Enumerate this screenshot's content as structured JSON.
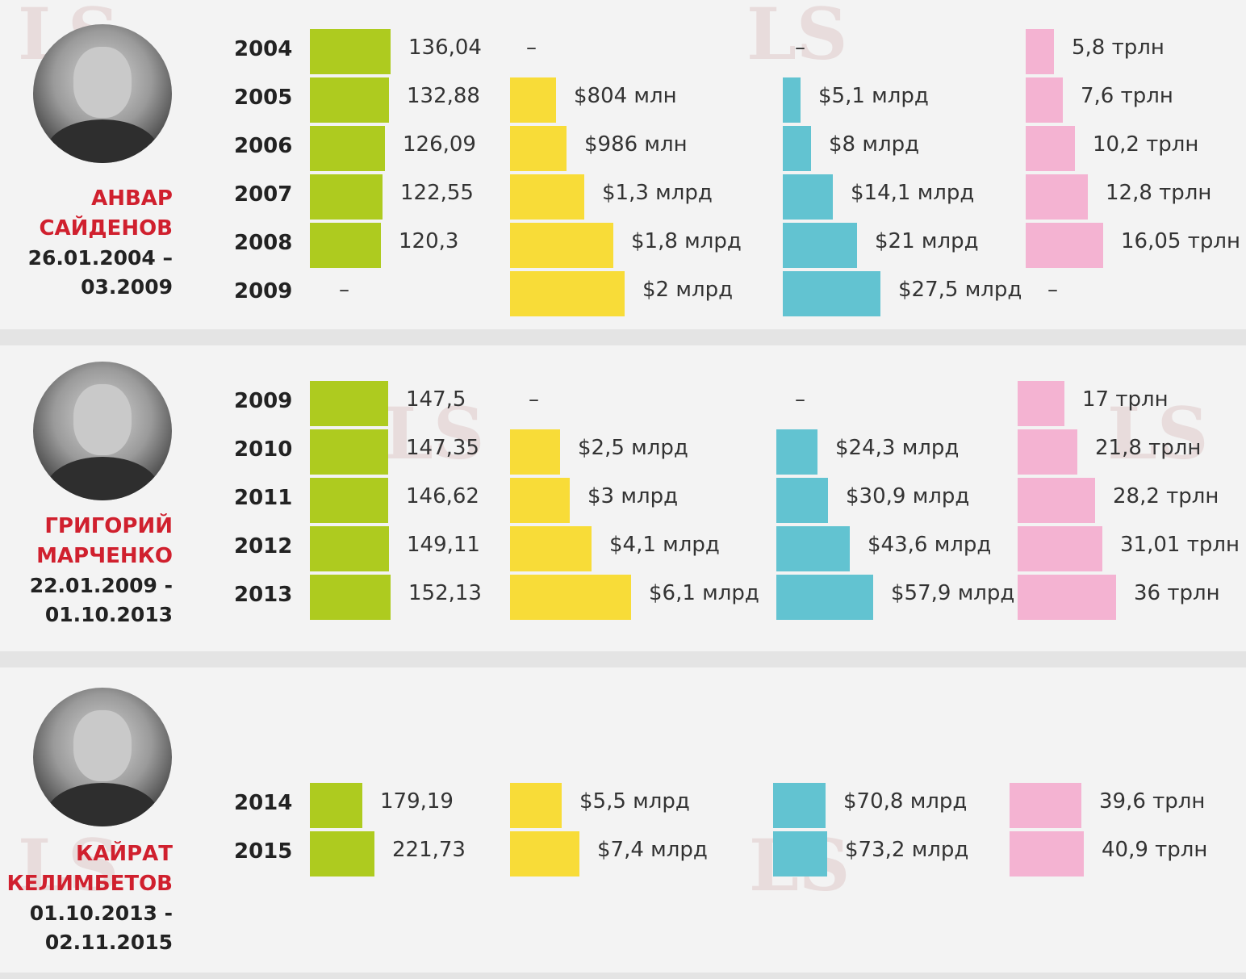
{
  "colors": {
    "green": "#aecb1f",
    "yellow": "#f8dc38",
    "blue": "#62c3d1",
    "pink": "#f4b3d2",
    "name": "#d0202e"
  },
  "watermark": "LS lsm.kz",
  "sections": [
    {
      "name_line1": "АНВАР",
      "name_line2": "САЙДЕНОВ",
      "dates_line1": "26.01.2004 –",
      "dates_line2": "03.2009",
      "rows": [
        {
          "year": "2004",
          "green": 136.04,
          "green_label": "136,04",
          "yellow": null,
          "yellow_label": "–",
          "blue": null,
          "blue_label": "–",
          "pink": 5.8,
          "pink_label": "5,8 трлн"
        },
        {
          "year": "2005",
          "green": 132.88,
          "green_label": "132,88",
          "yellow": 0.804,
          "yellow_label": "$804 млн",
          "blue": 5.1,
          "blue_label": "$5,1 млрд",
          "pink": 7.6,
          "pink_label": "7,6 трлн"
        },
        {
          "year": "2006",
          "green": 126.09,
          "green_label": "126,09",
          "yellow": 0.986,
          "yellow_label": "$986 млн",
          "blue": 8,
          "blue_label": "$8 млрд",
          "pink": 10.2,
          "pink_label": "10,2 трлн"
        },
        {
          "year": "2007",
          "green": 122.55,
          "green_label": "122,55",
          "yellow": 1.3,
          "yellow_label": "$1,3 млрд",
          "blue": 14.1,
          "blue_label": "$14,1 млрд",
          "pink": 12.8,
          "pink_label": "12,8 трлн"
        },
        {
          "year": "2008",
          "green": 120.3,
          "green_label": "120,3",
          "yellow": 1.8,
          "yellow_label": "$1,8 млрд",
          "blue": 21,
          "blue_label": "$21 млрд",
          "pink": 16.05,
          "pink_label": "16,05 трлн"
        },
        {
          "year": "2009",
          "green": null,
          "green_label": "–",
          "yellow": 2,
          "yellow_label": "$2 млрд",
          "blue": 27.5,
          "blue_label": "$27,5 млрд",
          "pink": null,
          "pink_label": "–"
        }
      ]
    },
    {
      "name_line1": "ГРИГОРИЙ",
      "name_line2": "МАРЧЕНКО",
      "dates_line1": "22.01.2009 -",
      "dates_line2": "01.10.2013",
      "rows": [
        {
          "year": "2009",
          "green": 147.5,
          "green_label": "147,5",
          "yellow": null,
          "yellow_label": "–",
          "blue": null,
          "blue_label": "–",
          "pink": 17,
          "pink_label": "17 трлн"
        },
        {
          "year": "2010",
          "green": 147.35,
          "green_label": "147,35",
          "yellow": 2.5,
          "yellow_label": "$2,5 млрд",
          "blue": 24.3,
          "blue_label": "$24,3 млрд",
          "pink": 21.8,
          "pink_label": "21,8 трлн"
        },
        {
          "year": "2011",
          "green": 146.62,
          "green_label": "146,62",
          "yellow": 3,
          "yellow_label": "$3 млрд",
          "blue": 30.9,
          "blue_label": "$30,9 млрд",
          "pink": 28.2,
          "pink_label": "28,2 трлн"
        },
        {
          "year": "2012",
          "green": 149.11,
          "green_label": "149,11",
          "yellow": 4.1,
          "yellow_label": "$4,1 млрд",
          "blue": 43.6,
          "blue_label": "$43,6 млрд",
          "pink": 31.01,
          "pink_label": "31,01 трлн"
        },
        {
          "year": "2013",
          "green": 152.13,
          "green_label": "152,13",
          "yellow": 6.1,
          "yellow_label": "$6,1 млрд",
          "blue": 57.9,
          "blue_label": "$57,9 млрд",
          "pink": 36,
          "pink_label": "36 трлн"
        }
      ]
    },
    {
      "name_line1": "КАЙРАТ",
      "name_line2": "КЕЛИМБЕТОВ",
      "dates_line1": "01.10.2013 -",
      "dates_line2": "02.11.2015",
      "rows": [
        {
          "year": "2014",
          "green": 179.19,
          "green_label": "179,19",
          "yellow": 5.5,
          "yellow_label": "$5,5 млрд",
          "blue": 70.8,
          "blue_label": "$70,8 млрд",
          "pink": 39.6,
          "pink_label": "39,6 трлн"
        },
        {
          "year": "2015",
          "green": 221.73,
          "green_label": "221,73",
          "yellow": 7.4,
          "yellow_label": "$7,4 млрд",
          "blue": 73.2,
          "blue_label": "$73,2 млрд",
          "pink": 40.9,
          "pink_label": "40,9 трлн"
        }
      ]
    }
  ],
  "chart_data": {
    "type": "bar",
    "orientation": "horizontal",
    "series": [
      "green",
      "yellow",
      "blue",
      "pink"
    ]
  }
}
